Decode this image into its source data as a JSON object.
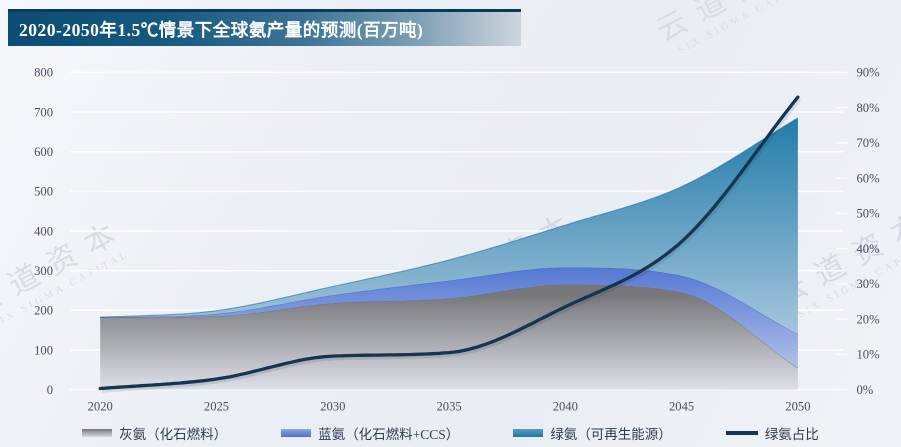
{
  "title": {
    "text": "2020-2050年1.5℃情景下全球氨产量的预测(百万吨)"
  },
  "watermark": {
    "cn": "云道资本",
    "en": "SIX SIGMA CAPITAL"
  },
  "legend": {
    "items": [
      {
        "label": "灰氨（化石燃料）",
        "series": "gray_ammonia"
      },
      {
        "label": "蓝氨（化石燃料+CCS）",
        "series": "blue_ammonia"
      },
      {
        "label": "绿氨（可再生能源）",
        "series": "green_ammonia"
      },
      {
        "label": "绿氨占比",
        "series": "green_share"
      }
    ]
  },
  "chart_data": {
    "type": "area",
    "title": "2020-2050年1.5℃情景下全球氨产量的预测(百万吨)",
    "stacked": true,
    "grid": true,
    "legend_position": "bottom",
    "x": [
      2020,
      2025,
      2030,
      2035,
      2040,
      2045,
      2050
    ],
    "x_ticks": [
      "2020",
      "2025",
      "2030",
      "2035",
      "2040",
      "2045",
      "2050"
    ],
    "series": [
      {
        "name": "灰氨（化石燃料）",
        "type": "area",
        "axis": "left",
        "values": [
          182,
          185,
          218,
          230,
          265,
          245,
          55
        ]
      },
      {
        "name": "蓝氨（化石燃料+CCS）",
        "type": "area",
        "axis": "left",
        "values": [
          0,
          6,
          20,
          45,
          43,
          42,
          85
        ]
      },
      {
        "name": "绿氨（可再生能源）",
        "type": "area",
        "axis": "left",
        "values": [
          0,
          8,
          22,
          52,
          107,
          225,
          545
        ]
      },
      {
        "name": "绿氨占比",
        "type": "line",
        "axis": "right",
        "unit": "%",
        "values": [
          0.3,
          3,
          9.5,
          10.5,
          23.5,
          42,
          83
        ]
      }
    ],
    "stack_totals": [
      182,
      199,
      260,
      327,
      415,
      512,
      685
    ],
    "left_axis": {
      "min": 0,
      "max": 800,
      "step": 100,
      "labels": [
        "0",
        "100",
        "200",
        "300",
        "400",
        "500",
        "600",
        "700",
        "800"
      ]
    },
    "right_axis": {
      "min": 0,
      "max": 90,
      "step": 10,
      "labels": [
        "0%",
        "10%",
        "20%",
        "30%",
        "40%",
        "50%",
        "60%",
        "70%",
        "80%",
        "90%"
      ]
    },
    "colors": {
      "gray_top": "#77777b",
      "gray_bottom": "#e6e9f2",
      "blue_top": "#4b71d0",
      "blue_bottom": "#d0d9f1",
      "teal_top": "#1e7aa8",
      "teal_bottom": "#cfdcec",
      "line": "#143650",
      "grid": "#ffffff"
    }
  }
}
